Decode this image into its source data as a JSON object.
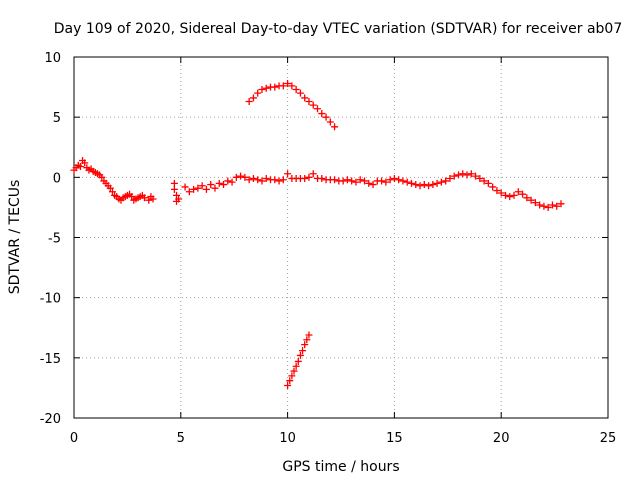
{
  "chart_data": {
    "type": "scatter",
    "title": "Day 109 of 2020, Sidereal Day-to-day VTEC variation (SDTVAR) for receiver ab07",
    "xlabel": "GPS time / hours",
    "ylabel": "SDTVAR / TECUs",
    "xlim": [
      0,
      25
    ],
    "ylim": [
      -20,
      10
    ],
    "xticks": [
      0,
      5,
      10,
      15,
      20,
      25
    ],
    "xtick_labels": [
      "0",
      "5",
      "10",
      "15",
      "20",
      "25"
    ],
    "yticks": [
      10,
      5,
      0,
      -5,
      -10,
      -15,
      -20
    ],
    "ytick_labels": [
      "10",
      "5",
      "0",
      "-5",
      "-10",
      "-15",
      "-20"
    ],
    "grid": true,
    "marker": "plus",
    "color": "#ff0000",
    "series": [
      {
        "name": "main_band",
        "points": [
          [
            0.0,
            0.6
          ],
          [
            0.1,
            0.8
          ],
          [
            0.2,
            1.0
          ],
          [
            0.3,
            0.9
          ],
          [
            0.4,
            1.4
          ],
          [
            0.5,
            1.2
          ],
          [
            0.6,
            0.8
          ],
          [
            0.7,
            0.6
          ],
          [
            0.8,
            0.7
          ],
          [
            0.9,
            0.5
          ],
          [
            1.0,
            0.4
          ],
          [
            1.1,
            0.3
          ],
          [
            1.2,
            0.2
          ],
          [
            1.3,
            0.0
          ],
          [
            1.4,
            -0.3
          ],
          [
            1.5,
            -0.5
          ],
          [
            1.6,
            -0.7
          ],
          [
            1.7,
            -0.9
          ],
          [
            1.8,
            -1.2
          ],
          [
            1.9,
            -1.5
          ],
          [
            2.0,
            -1.6
          ],
          [
            2.1,
            -1.8
          ],
          [
            2.2,
            -1.9
          ],
          [
            2.3,
            -1.7
          ],
          [
            2.4,
            -1.6
          ],
          [
            2.5,
            -1.5
          ],
          [
            2.6,
            -1.4
          ],
          [
            2.7,
            -1.6
          ],
          [
            2.8,
            -1.9
          ],
          [
            2.9,
            -1.8
          ],
          [
            3.0,
            -1.7
          ],
          [
            3.1,
            -1.6
          ],
          [
            3.2,
            -1.5
          ],
          [
            3.3,
            -1.7
          ],
          [
            3.5,
            -1.9
          ],
          [
            3.6,
            -1.6
          ],
          [
            3.7,
            -1.8
          ],
          [
            4.7,
            -0.5
          ],
          [
            4.7,
            -1.0
          ],
          [
            4.8,
            -1.5
          ],
          [
            4.8,
            -2.0
          ],
          [
            4.9,
            -1.8
          ],
          [
            5.2,
            -0.8
          ],
          [
            5.4,
            -1.2
          ],
          [
            5.6,
            -1.0
          ],
          [
            5.8,
            -0.9
          ],
          [
            6.0,
            -0.7
          ],
          [
            6.2,
            -1.0
          ],
          [
            6.4,
            -0.6
          ],
          [
            6.6,
            -0.9
          ],
          [
            6.8,
            -0.5
          ],
          [
            7.0,
            -0.6
          ],
          [
            7.2,
            -0.3
          ],
          [
            7.4,
            -0.4
          ],
          [
            7.6,
            0.0
          ],
          [
            7.8,
            0.1
          ],
          [
            8.0,
            0.0
          ],
          [
            8.2,
            -0.2
          ],
          [
            8.4,
            -0.1
          ],
          [
            8.6,
            -0.2
          ],
          [
            8.8,
            -0.3
          ],
          [
            9.0,
            -0.1
          ],
          [
            9.2,
            -0.2
          ],
          [
            9.4,
            -0.2
          ],
          [
            9.6,
            -0.3
          ],
          [
            9.8,
            -0.2
          ],
          [
            10.0,
            0.3
          ],
          [
            10.2,
            -0.1
          ],
          [
            10.4,
            -0.1
          ],
          [
            10.6,
            -0.1
          ],
          [
            10.8,
            -0.1
          ],
          [
            11.0,
            0.0
          ],
          [
            11.2,
            0.3
          ],
          [
            11.4,
            -0.1
          ],
          [
            11.6,
            -0.1
          ],
          [
            11.8,
            -0.2
          ],
          [
            12.0,
            -0.2
          ],
          [
            12.2,
            -0.2
          ],
          [
            12.4,
            -0.3
          ],
          [
            12.6,
            -0.3
          ],
          [
            12.8,
            -0.2
          ],
          [
            13.0,
            -0.3
          ],
          [
            13.2,
            -0.4
          ],
          [
            13.4,
            -0.2
          ],
          [
            13.6,
            -0.3
          ],
          [
            13.8,
            -0.5
          ],
          [
            14.0,
            -0.6
          ],
          [
            14.2,
            -0.3
          ],
          [
            14.4,
            -0.3
          ],
          [
            14.6,
            -0.4
          ],
          [
            14.8,
            -0.2
          ],
          [
            15.0,
            -0.1
          ],
          [
            15.2,
            -0.2
          ],
          [
            15.4,
            -0.3
          ],
          [
            15.6,
            -0.4
          ],
          [
            15.8,
            -0.5
          ],
          [
            16.0,
            -0.6
          ],
          [
            16.2,
            -0.7
          ],
          [
            16.4,
            -0.6
          ],
          [
            16.6,
            -0.7
          ],
          [
            16.8,
            -0.6
          ],
          [
            17.0,
            -0.5
          ],
          [
            17.2,
            -0.4
          ],
          [
            17.4,
            -0.3
          ],
          [
            17.6,
            -0.1
          ],
          [
            17.8,
            0.1
          ],
          [
            18.0,
            0.2
          ],
          [
            18.2,
            0.3
          ],
          [
            18.4,
            0.2
          ],
          [
            18.6,
            0.3
          ],
          [
            18.8,
            0.1
          ],
          [
            19.0,
            -0.1
          ],
          [
            19.2,
            -0.3
          ],
          [
            19.4,
            -0.5
          ],
          [
            19.6,
            -0.8
          ],
          [
            19.8,
            -1.1
          ],
          [
            20.0,
            -1.3
          ],
          [
            20.2,
            -1.5
          ],
          [
            20.4,
            -1.6
          ],
          [
            20.6,
            -1.5
          ],
          [
            20.8,
            -1.2
          ],
          [
            21.0,
            -1.4
          ],
          [
            21.2,
            -1.7
          ],
          [
            21.4,
            -1.9
          ],
          [
            21.6,
            -2.1
          ],
          [
            21.8,
            -2.3
          ],
          [
            22.0,
            -2.4
          ],
          [
            22.2,
            -2.5
          ],
          [
            22.4,
            -2.3
          ],
          [
            22.6,
            -2.4
          ],
          [
            22.8,
            -2.2
          ]
        ]
      },
      {
        "name": "upper_arc",
        "points": [
          [
            8.2,
            6.3
          ],
          [
            8.4,
            6.6
          ],
          [
            8.6,
            7.0
          ],
          [
            8.8,
            7.3
          ],
          [
            9.0,
            7.4
          ],
          [
            9.2,
            7.5
          ],
          [
            9.4,
            7.5
          ],
          [
            9.6,
            7.6
          ],
          [
            9.8,
            7.6
          ],
          [
            10.0,
            7.8
          ],
          [
            10.2,
            7.6
          ],
          [
            10.4,
            7.3
          ],
          [
            10.6,
            7.0
          ],
          [
            10.8,
            6.6
          ],
          [
            11.0,
            6.3
          ],
          [
            11.2,
            6.0
          ],
          [
            11.4,
            5.7
          ],
          [
            11.6,
            5.3
          ],
          [
            11.8,
            5.0
          ],
          [
            12.0,
            4.6
          ],
          [
            12.2,
            4.2
          ]
        ]
      },
      {
        "name": "lower_segment",
        "points": [
          [
            10.0,
            -17.3
          ],
          [
            10.1,
            -16.9
          ],
          [
            10.2,
            -16.5
          ],
          [
            10.3,
            -16.1
          ],
          [
            10.4,
            -15.7
          ],
          [
            10.5,
            -15.3
          ],
          [
            10.6,
            -14.8
          ],
          [
            10.7,
            -14.4
          ],
          [
            10.8,
            -13.9
          ],
          [
            10.9,
            -13.5
          ],
          [
            11.0,
            -13.1
          ]
        ]
      }
    ]
  }
}
